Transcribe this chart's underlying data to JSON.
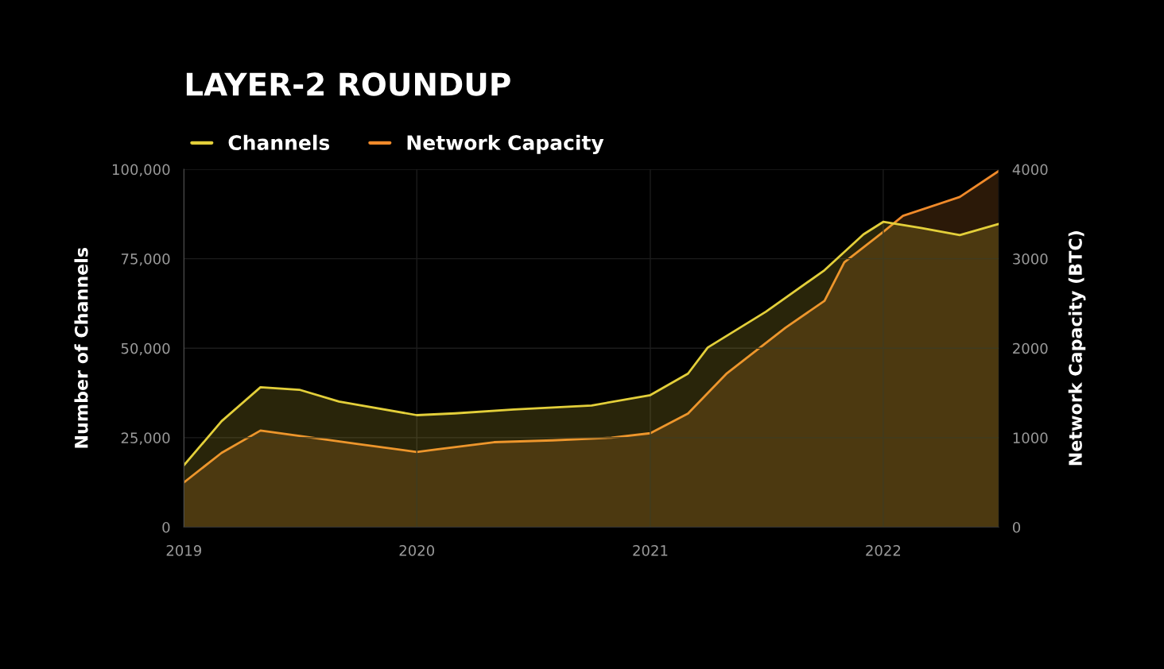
{
  "chart_data": {
    "type": "area",
    "title": "LAYER-2 ROUNDUP",
    "ylabel": "Number of Channels",
    "y2label": "Network Capacity (BTC)",
    "series": [
      {
        "name": "Channels",
        "color": "#e3cf3a",
        "axis": "y",
        "x": [
          "2019-01",
          "2019-03",
          "2019-05",
          "2019-07",
          "2019-09",
          "2020-01",
          "2020-03",
          "2020-06",
          "2020-10",
          "2021-01",
          "2021-03",
          "2021-04",
          "2021-07",
          "2021-10",
          "2021-12",
          "2022-01",
          "2022-03",
          "2022-05",
          "2022-07"
        ],
        "values": [
          17300,
          29600,
          39100,
          38400,
          35100,
          31300,
          31800,
          32900,
          34000,
          36900,
          42900,
          50200,
          60200,
          71800,
          81800,
          85300,
          83600,
          81600,
          84700
        ]
      },
      {
        "name": "Network Capacity",
        "color": "#f08a2a",
        "axis": "y2",
        "x": [
          "2019-01",
          "2019-03",
          "2019-05",
          "2019-07",
          "2019-10",
          "2020-01",
          "2020-02",
          "2020-05",
          "2020-08",
          "2020-11",
          "2021-01",
          "2021-03",
          "2021-05",
          "2021-08",
          "2021-10",
          "2021-11",
          "2022-01",
          "2022-02",
          "2022-05",
          "2022-07"
        ],
        "values": [
          500,
          830,
          1080,
          1020,
          930,
          840,
          870,
          950,
          970,
          1000,
          1050,
          1270,
          1720,
          2230,
          2530,
          2960,
          3300,
          3480,
          3690,
          3980
        ]
      }
    ],
    "xlim": [
      "2019-01",
      "2022-07"
    ],
    "xticks": [
      {
        "value": "2019",
        "label": "2019"
      },
      {
        "value": "2020",
        "label": "2020"
      },
      {
        "value": "2021",
        "label": "2021"
      },
      {
        "value": "2022",
        "label": "2022"
      }
    ],
    "ylim": [
      0,
      100000
    ],
    "yticks": [
      {
        "value": 0,
        "label": "0"
      },
      {
        "value": 25000,
        "label": "25,000"
      },
      {
        "value": 50000,
        "label": "50,000"
      },
      {
        "value": 75000,
        "label": "75,000"
      },
      {
        "value": 100000,
        "label": "100,000"
      }
    ],
    "y2lim": [
      0,
      4000
    ],
    "y2ticks": [
      0,
      1000,
      2000,
      3000,
      4000
    ],
    "grid": true,
    "legend": "top left"
  }
}
